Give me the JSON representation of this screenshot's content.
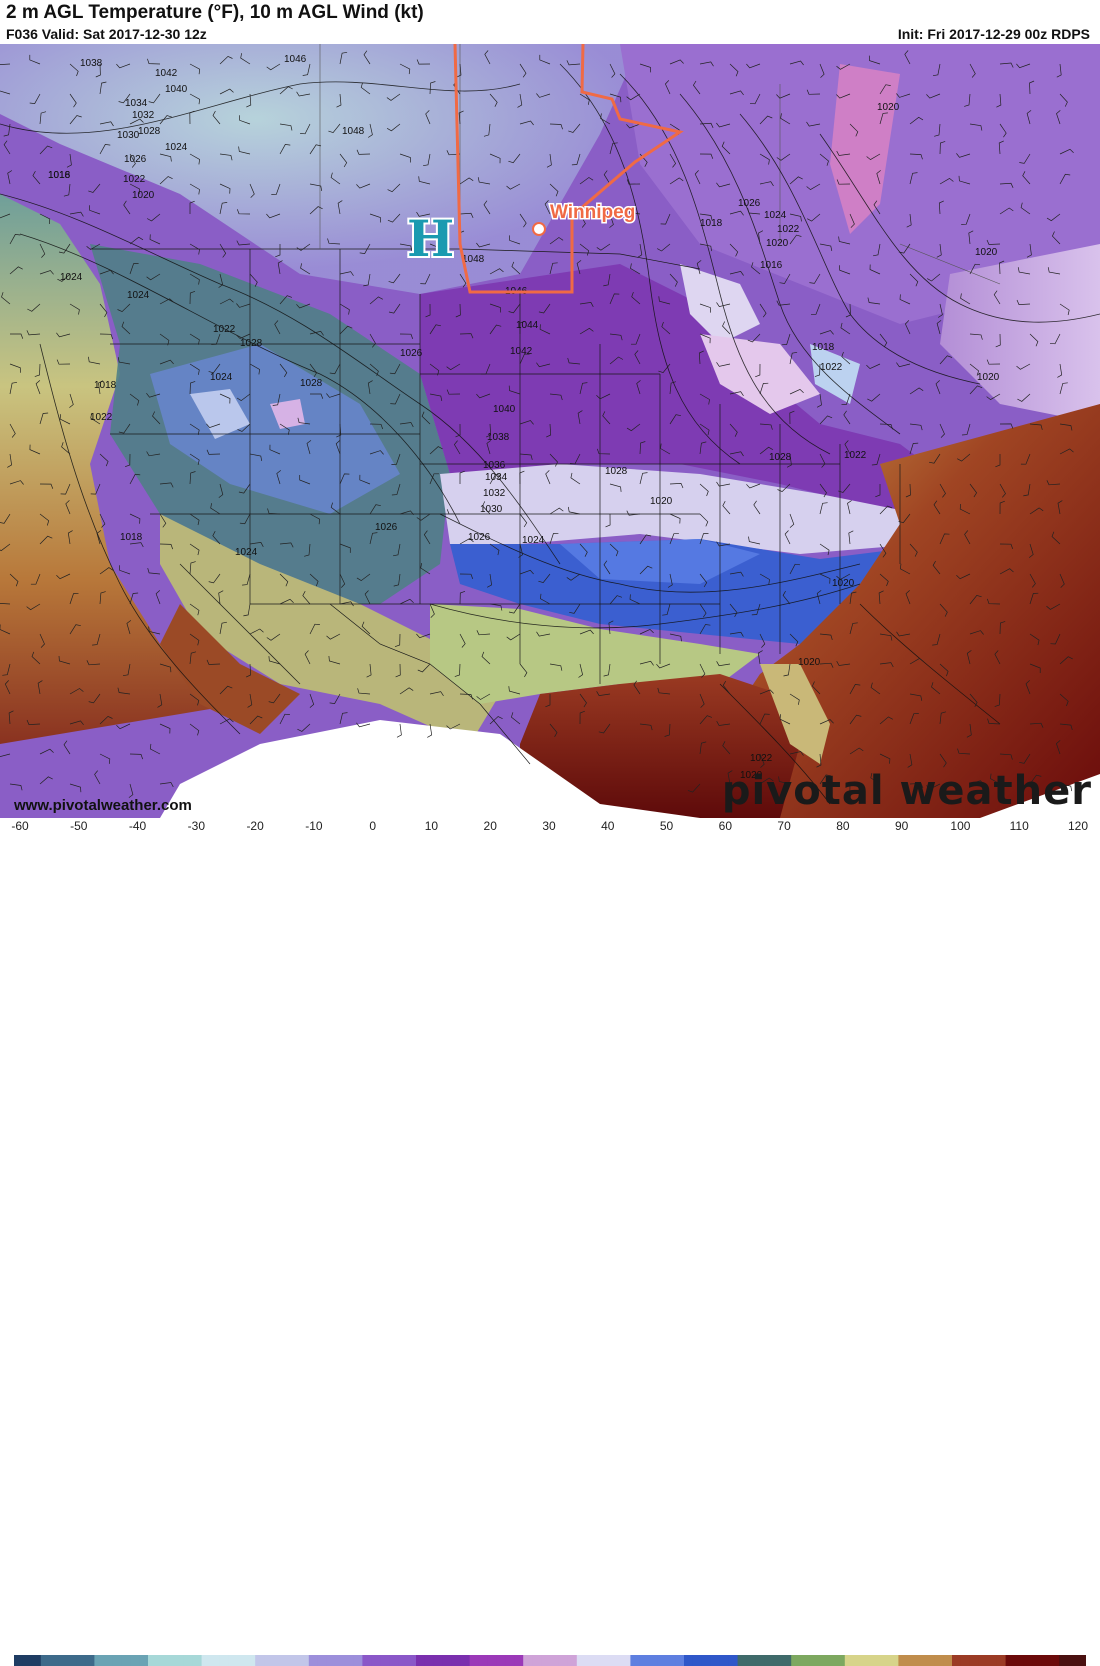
{
  "header": {
    "title": "2 m AGL Temperature (°F), 10 m AGL Wind (kt)",
    "valid": "F036 Valid: Sat 2017-12-30 12z",
    "init": "Init: Fri 2017-12-29 00z RDPS"
  },
  "annotations": {
    "high_pressure_label": "H",
    "city_label": "Winnipeg",
    "highlight_color": "#f06a45",
    "high_color": "#1a9ab0"
  },
  "isobars": [
    "1044",
    "1046",
    "1038",
    "1042",
    "1040",
    "1034",
    "1032",
    "1030",
    "1028",
    "1024",
    "1026",
    "1022",
    "1020",
    "1018",
    "1016",
    "1048",
    "1022",
    "1020",
    "1048",
    "1046",
    "1044",
    "1042",
    "1040",
    "1038",
    "1036",
    "1034",
    "1032",
    "1030",
    "1026",
    "1024",
    "1028",
    "1026",
    "1024",
    "1022",
    "1020",
    "1018",
    "1016",
    "1018",
    "1022",
    "1020",
    "1024",
    "1022",
    "1028",
    "1028",
    "1026",
    "1024",
    "1018",
    "1018",
    "1024",
    "1026",
    "1028",
    "1022",
    "1020",
    "1024",
    "1022",
    "1020",
    "1020",
    "1020",
    "1022",
    "1020"
  ],
  "footer": {
    "website": "www.pivotalweather.com",
    "brand": "pivotal weather"
  },
  "colorbar": {
    "ticks": [
      "-60",
      "-50",
      "-40",
      "-30",
      "-20",
      "-10",
      "0",
      "10",
      "20",
      "30",
      "40",
      "50",
      "60",
      "70",
      "80",
      "90",
      "100",
      "110",
      "120"
    ],
    "colors": [
      "#1f3c63",
      "#3d6a8a",
      "#6aa3b4",
      "#a7d8d8",
      "#cfe7ef",
      "#c2c6e9",
      "#9c8fdb",
      "#8a57c8",
      "#7a2fae",
      "#9b39b8",
      "#cfa3d8",
      "#dcdcf4",
      "#5e7fe0",
      "#2f57c9",
      "#3f6a6a",
      "#7da860",
      "#d7d48a",
      "#c08d4c",
      "#9b3b25",
      "#6b0a0a",
      "#4a1010"
    ]
  }
}
